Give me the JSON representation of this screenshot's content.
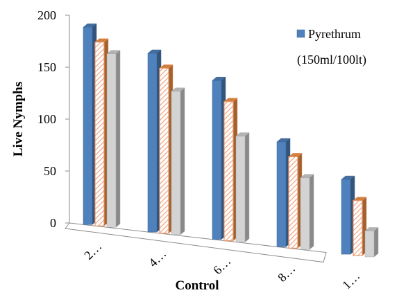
{
  "chart_data": {
    "type": "bar",
    "categories": [
      "2…",
      "4…",
      "6…",
      "8…",
      "1…"
    ],
    "series": [
      {
        "name": "Pyrethrum (150ml/100lt)",
        "values": [
          190,
          172,
          153,
          101,
          72
        ],
        "color": "#4f81bd"
      },
      {
        "name": "",
        "values": [
          177,
          159,
          134,
          88,
          53
        ],
        "color": "#f79646",
        "pattern": "hatched"
      },
      {
        "name": "",
        "values": [
          167,
          138,
          102,
          69,
          25
        ],
        "color": "#d3d3d3"
      }
    ],
    "ylabel": "Live Nymphs",
    "xlabel": "Control",
    "ylim": [
      0,
      200
    ],
    "yticks": [
      0,
      50,
      100,
      150,
      200
    ],
    "legend_position": "top-right",
    "style": "3d-clustered-bar"
  }
}
